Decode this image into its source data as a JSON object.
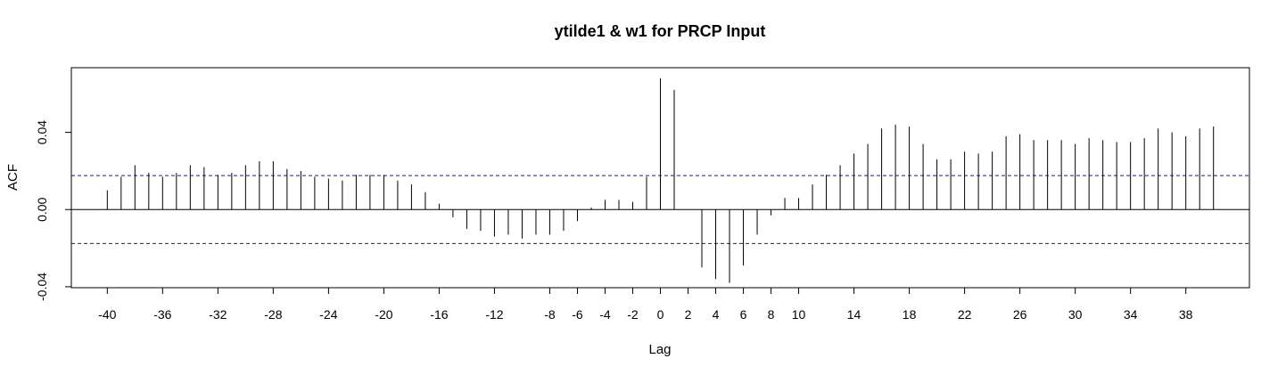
{
  "chart_data": {
    "type": "bar",
    "title": "ytilde1 & w1 for PRCP Input",
    "xlabel": "Lag",
    "ylabel": "ACF",
    "xlim": [
      -42.6,
      42.6
    ],
    "ylim": [
      -0.0405,
      0.0735
    ],
    "x_ticks": [
      -40,
      -36,
      -32,
      -28,
      -24,
      -20,
      -16,
      -12,
      -8,
      -6,
      -4,
      -2,
      0,
      2,
      4,
      6,
      8,
      10,
      14,
      18,
      22,
      26,
      30,
      34,
      38
    ],
    "y_ticks": [
      -0.04,
      0.0,
      0.04
    ],
    "y_tick_labels": [
      "-0.04",
      "0.00",
      "0.04"
    ],
    "confidence_bound": 0.0176,
    "zero_line": true,
    "lags": [
      -40,
      -39,
      -38,
      -37,
      -36,
      -35,
      -34,
      -33,
      -32,
      -31,
      -30,
      -29,
      -28,
      -27,
      -26,
      -25,
      -24,
      -23,
      -22,
      -21,
      -20,
      -19,
      -18,
      -17,
      -16,
      -15,
      -14,
      -13,
      -12,
      -11,
      -10,
      -9,
      -8,
      -7,
      -6,
      -5,
      -4,
      -3,
      -2,
      -1,
      0,
      1,
      2,
      3,
      4,
      5,
      6,
      7,
      8,
      9,
      10,
      11,
      12,
      13,
      14,
      15,
      16,
      17,
      18,
      19,
      20,
      21,
      22,
      23,
      24,
      25,
      26,
      27,
      28,
      29,
      30,
      31,
      32,
      33,
      34,
      35,
      36,
      37,
      38,
      39,
      40
    ],
    "values": [
      0.01,
      0.017,
      0.023,
      0.019,
      0.017,
      0.019,
      0.023,
      0.022,
      0.018,
      0.019,
      0.023,
      0.025,
      0.025,
      0.021,
      0.02,
      0.017,
      0.016,
      0.015,
      0.018,
      0.018,
      0.018,
      0.015,
      0.013,
      0.009,
      0.003,
      -0.004,
      -0.01,
      -0.011,
      -0.014,
      -0.013,
      -0.015,
      -0.013,
      -0.013,
      -0.011,
      -0.006,
      0.001,
      0.005,
      0.005,
      0.004,
      0.017,
      0.068,
      0.062,
      0.0,
      -0.03,
      -0.036,
      -0.038,
      -0.029,
      -0.013,
      -0.003,
      0.006,
      0.006,
      0.013,
      0.018,
      0.023,
      0.029,
      0.034,
      0.042,
      0.044,
      0.043,
      0.034,
      0.026,
      0.026,
      0.03,
      0.029,
      0.03,
      0.038,
      0.039,
      0.036,
      0.036,
      0.036,
      0.034,
      0.037,
      0.036,
      0.035,
      0.035,
      0.037,
      0.042,
      0.04,
      0.038,
      0.042,
      0.043
    ]
  }
}
